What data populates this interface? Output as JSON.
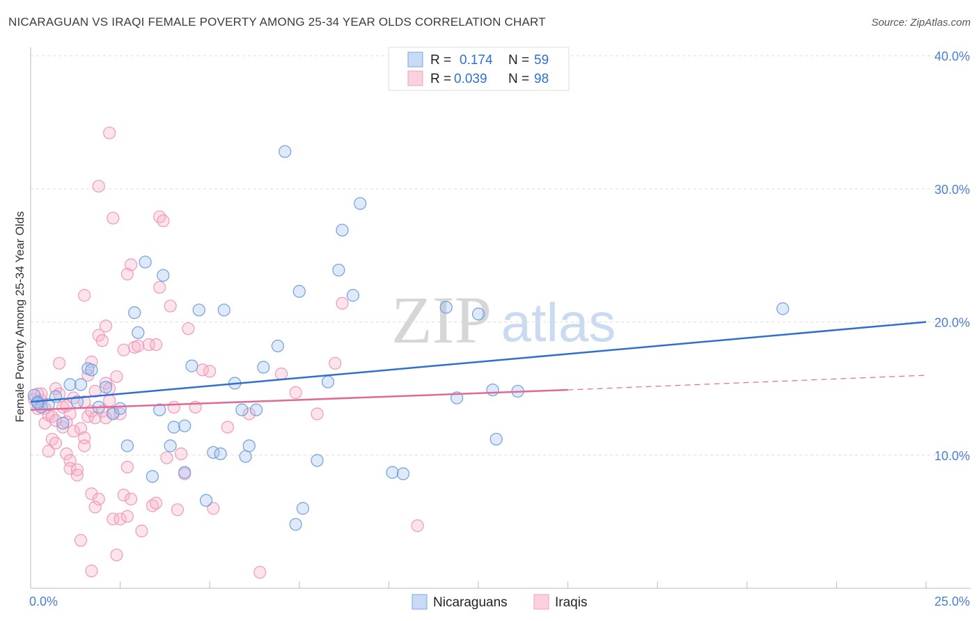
{
  "title": "NICARAGUAN VS IRAQI FEMALE POVERTY AMONG 25-34 YEAR OLDS CORRELATION CHART",
  "source": "Source: ZipAtlas.com",
  "watermark": {
    "zip": "ZIP",
    "atlas": "atlas"
  },
  "legend": {
    "r_label": "R =",
    "n_label": "N =",
    "rows": [
      {
        "r": "0.174",
        "n": "59"
      },
      {
        "r": "0.039",
        "n": "98"
      }
    ]
  },
  "bottom_legend": [
    "Nicaraguans",
    "Iraqis"
  ],
  "chart_data": {
    "type": "scatter",
    "ylabel": "Female Poverty Among 25-34 Year Olds",
    "xlim": [
      0,
      25
    ],
    "ylim": [
      0,
      40
    ],
    "x_tick_labels": [
      {
        "value": 0,
        "label": "0.0%"
      },
      {
        "value": 25,
        "label": "25.0%"
      }
    ],
    "y_tick_labels": [
      {
        "value": 10,
        "label": "10.0%"
      },
      {
        "value": 20,
        "label": "20.0%"
      },
      {
        "value": 30,
        "label": "30.0%"
      },
      {
        "value": 40,
        "label": "40.0%"
      }
    ],
    "grid": true,
    "colors": {
      "nicaraguans": "#6f9fe0",
      "iraqis": "#f09ab8",
      "nic_line": "#2f6fd0",
      "iraq_line": "#e06a94"
    },
    "series": [
      {
        "name": "Nicaraguans",
        "trend": {
          "x0": 0,
          "y0": 14.0,
          "x1": 25,
          "y1": 20.0
        },
        "points": [
          [
            0.1,
            14.5
          ],
          [
            0.2,
            14.0
          ],
          [
            0.3,
            13.6
          ],
          [
            0.5,
            13.8
          ],
          [
            0.7,
            14.4
          ],
          [
            0.9,
            12.4
          ],
          [
            1.1,
            15.3
          ],
          [
            1.3,
            14.0
          ],
          [
            1.4,
            15.3
          ],
          [
            1.6,
            16.5
          ],
          [
            1.7,
            16.4
          ],
          [
            1.9,
            13.6
          ],
          [
            2.1,
            15.1
          ],
          [
            2.3,
            13.1
          ],
          [
            2.5,
            13.5
          ],
          [
            2.7,
            10.7
          ],
          [
            2.9,
            20.7
          ],
          [
            3.0,
            19.2
          ],
          [
            3.2,
            24.5
          ],
          [
            3.4,
            8.4
          ],
          [
            3.6,
            13.4
          ],
          [
            3.7,
            23.5
          ],
          [
            3.9,
            10.7
          ],
          [
            4.0,
            12.1
          ],
          [
            4.3,
            8.7
          ],
          [
            4.3,
            12.2
          ],
          [
            4.5,
            16.7
          ],
          [
            4.7,
            20.9
          ],
          [
            4.9,
            6.6
          ],
          [
            5.1,
            10.2
          ],
          [
            5.3,
            10.1
          ],
          [
            5.4,
            20.9
          ],
          [
            5.7,
            15.4
          ],
          [
            5.9,
            13.4
          ],
          [
            6.0,
            9.9
          ],
          [
            6.1,
            10.7
          ],
          [
            6.3,
            13.4
          ],
          [
            6.5,
            16.6
          ],
          [
            6.9,
            18.2
          ],
          [
            7.1,
            32.8
          ],
          [
            7.4,
            4.8
          ],
          [
            7.5,
            22.3
          ],
          [
            7.6,
            6.0
          ],
          [
            8.0,
            9.6
          ],
          [
            8.3,
            15.5
          ],
          [
            8.6,
            23.9
          ],
          [
            8.7,
            26.9
          ],
          [
            9.0,
            22.0
          ],
          [
            9.2,
            28.9
          ],
          [
            10.1,
            8.7
          ],
          [
            10.4,
            8.6
          ],
          [
            11.6,
            21.1
          ],
          [
            11.9,
            14.3
          ],
          [
            12.5,
            20.6
          ],
          [
            12.9,
            14.9
          ],
          [
            13.0,
            11.2
          ],
          [
            13.6,
            14.8
          ],
          [
            21.0,
            21.0
          ],
          [
            0.2,
            13.9
          ]
        ]
      },
      {
        "name": "Iraqis",
        "trend": {
          "x0": 0,
          "y0": 13.4,
          "x1": 15,
          "y1": 14.9
        },
        "trend_dashed": {
          "x0": 15,
          "y0": 14.9,
          "x1": 25,
          "y1": 16.0
        },
        "points": [
          [
            0.1,
            14.2
          ],
          [
            0.2,
            13.5
          ],
          [
            0.2,
            14.6
          ],
          [
            0.3,
            14.1
          ],
          [
            0.4,
            12.4
          ],
          [
            0.4,
            13.5
          ],
          [
            0.5,
            13.0
          ],
          [
            0.5,
            10.3
          ],
          [
            0.6,
            11.2
          ],
          [
            0.6,
            12.9
          ],
          [
            0.7,
            15.0
          ],
          [
            0.7,
            12.6
          ],
          [
            0.7,
            10.9
          ],
          [
            0.8,
            16.9
          ],
          [
            0.8,
            14.6
          ],
          [
            0.9,
            13.6
          ],
          [
            0.9,
            12.1
          ],
          [
            1.0,
            10.1
          ],
          [
            1.0,
            12.5
          ],
          [
            1.0,
            13.7
          ],
          [
            1.1,
            9.6
          ],
          [
            1.1,
            9.0
          ],
          [
            1.1,
            13.1
          ],
          [
            1.2,
            14.3
          ],
          [
            1.2,
            11.8
          ],
          [
            1.3,
            8.9
          ],
          [
            1.3,
            8.5
          ],
          [
            1.4,
            12.0
          ],
          [
            1.4,
            3.6
          ],
          [
            1.5,
            22.0
          ],
          [
            1.5,
            14.0
          ],
          [
            1.5,
            11.3
          ],
          [
            1.5,
            10.7
          ],
          [
            1.6,
            12.9
          ],
          [
            1.6,
            16.0
          ],
          [
            1.7,
            17.0
          ],
          [
            1.7,
            13.3
          ],
          [
            1.7,
            7.1
          ],
          [
            1.7,
            1.3
          ],
          [
            1.8,
            14.8
          ],
          [
            1.8,
            12.8
          ],
          [
            1.8,
            6.1
          ],
          [
            1.9,
            30.2
          ],
          [
            1.9,
            19.0
          ],
          [
            1.9,
            6.7
          ],
          [
            2.0,
            18.6
          ],
          [
            2.0,
            13.3
          ],
          [
            2.1,
            15.4
          ],
          [
            2.1,
            12.8
          ],
          [
            2.1,
            19.7
          ],
          [
            2.2,
            34.2
          ],
          [
            2.2,
            15.0
          ],
          [
            2.2,
            14.1
          ],
          [
            2.3,
            27.8
          ],
          [
            2.3,
            13.2
          ],
          [
            2.3,
            5.2
          ],
          [
            2.4,
            15.9
          ],
          [
            2.4,
            2.5
          ],
          [
            2.5,
            5.2
          ],
          [
            2.5,
            13.1
          ],
          [
            2.6,
            17.9
          ],
          [
            2.6,
            7.0
          ],
          [
            2.7,
            23.6
          ],
          [
            2.7,
            5.4
          ],
          [
            2.7,
            9.1
          ],
          [
            2.8,
            6.7
          ],
          [
            2.8,
            24.3
          ],
          [
            2.9,
            18.1
          ],
          [
            3.0,
            18.2
          ],
          [
            3.1,
            4.3
          ],
          [
            3.3,
            18.3
          ],
          [
            3.4,
            6.2
          ],
          [
            3.5,
            6.4
          ],
          [
            3.5,
            18.3
          ],
          [
            3.6,
            22.6
          ],
          [
            3.6,
            27.9
          ],
          [
            3.7,
            27.6
          ],
          [
            3.8,
            9.8
          ],
          [
            3.9,
            21.2
          ],
          [
            4.0,
            13.6
          ],
          [
            4.1,
            5.9
          ],
          [
            4.2,
            10.1
          ],
          [
            4.3,
            8.6
          ],
          [
            4.4,
            19.5
          ],
          [
            4.6,
            13.6
          ],
          [
            4.8,
            16.4
          ],
          [
            5.0,
            16.3
          ],
          [
            5.1,
            6.0
          ],
          [
            5.5,
            12.1
          ],
          [
            6.1,
            13.1
          ],
          [
            6.4,
            1.2
          ],
          [
            7.0,
            16.1
          ],
          [
            7.4,
            14.7
          ],
          [
            8.0,
            13.1
          ],
          [
            8.5,
            16.9
          ],
          [
            8.7,
            21.4
          ],
          [
            10.8,
            4.7
          ],
          [
            0.3,
            14.6
          ]
        ]
      }
    ]
  }
}
